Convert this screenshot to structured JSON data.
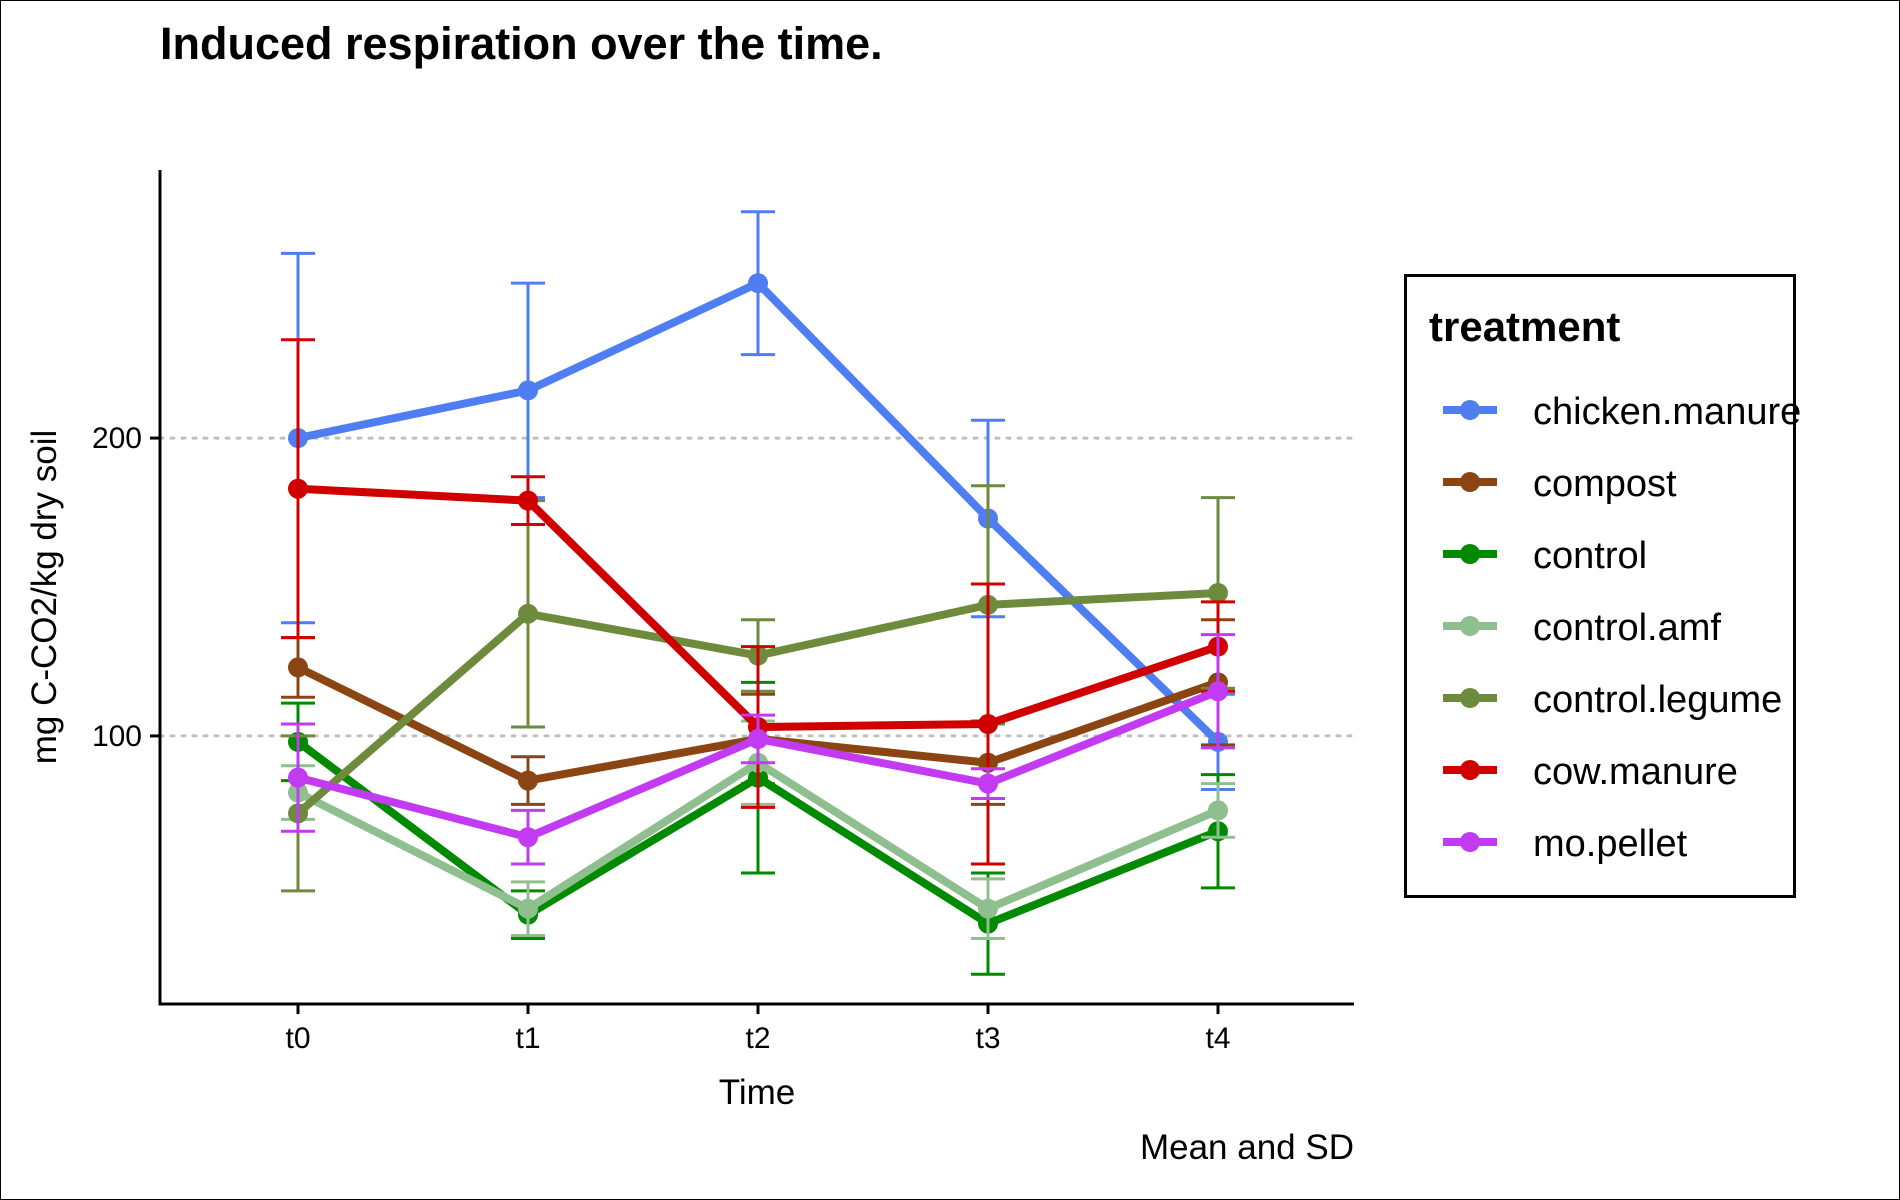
{
  "chart_data": {
    "type": "line",
    "title": "Induced respiration over the time.",
    "xlabel": "Time",
    "ylabel": "mg C-CO2/kg dry soil",
    "caption": "Mean and SD",
    "categories": [
      "t0",
      "t1",
      "t2",
      "t3",
      "t4"
    ],
    "ylim": [
      10,
      290
    ],
    "yticks": [
      100,
      200
    ],
    "grid": "major y dotted",
    "error_bars": "SD",
    "legend": {
      "title": "treatment",
      "position": "right"
    },
    "series": [
      {
        "name": "chicken.manure",
        "color": "#4f7df2",
        "values": [
          200,
          216,
          252,
          173,
          98
        ],
        "sd": [
          62,
          36,
          24,
          33,
          16
        ]
      },
      {
        "name": "compost",
        "color": "#8b4513",
        "values": [
          123,
          85,
          99,
          91,
          118
        ],
        "sd": [
          10,
          8,
          15,
          14,
          21
        ]
      },
      {
        "name": "control",
        "color": "#008a00",
        "values": [
          98,
          40,
          86,
          37,
          68
        ],
        "sd": [
          13,
          8,
          32,
          17,
          19
        ]
      },
      {
        "name": "control.amf",
        "color": "#8fbf8f",
        "values": [
          81,
          42,
          91,
          42,
          75
        ],
        "sd": [
          9,
          9,
          14,
          10,
          9
        ]
      },
      {
        "name": "control.legume",
        "color": "#6e8b3d",
        "values": [
          74,
          141,
          127,
          144,
          148
        ],
        "sd": [
          26,
          38,
          12,
          40,
          32
        ]
      },
      {
        "name": "cow.manure",
        "color": "#d00000",
        "values": [
          183,
          179,
          103,
          104,
          130
        ],
        "sd": [
          50,
          8,
          27,
          47,
          15
        ]
      },
      {
        "name": "mo.pellet",
        "color": "#c23bf2",
        "values": [
          86,
          66,
          99,
          84,
          115
        ],
        "sd": [
          18,
          9,
          8,
          5,
          19
        ]
      }
    ]
  }
}
